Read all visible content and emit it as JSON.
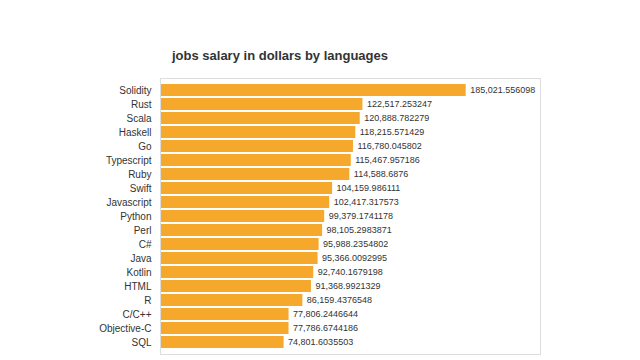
{
  "chart_data": {
    "type": "bar",
    "orientation": "horizontal",
    "title": "jobs salary in dollars by languages",
    "categories": [
      "Solidity",
      "Rust",
      "Scala",
      "Haskell",
      "Go",
      "Typescript",
      "Ruby",
      "Swift",
      "Javascript",
      "Python",
      "Perl",
      "C#",
      "Java",
      "Kotlin",
      "HTML",
      "R",
      "C/C++",
      "Objective-C",
      "SQL"
    ],
    "values": [
      185021.556098,
      122517.253247,
      120888.782279,
      118215.571429,
      116780.045802,
      115467.957186,
      114588.6876,
      104159.986111,
      102417.317573,
      99379.1741178,
      98105.2983871,
      95988.2354802,
      95366.0092995,
      92740.1679198,
      91368.9921329,
      86159.4376548,
      77806.2446644,
      77786.6744186,
      74801.6035503
    ],
    "value_labels": [
      "185,021.556098",
      "122,517.253247",
      "120,888.782279",
      "118,215.571429",
      "116,780.045802",
      "115,467.957186",
      "114,588.6876",
      "104,159.986111",
      "102,417.317573",
      "99,379.1741178",
      "98,105.2983871",
      "95,988.2354802",
      "95,366.0092995",
      "92,740.1679198",
      "91,368.9921329",
      "86,159.4376548",
      "77,806.2446644",
      "77,786.6744186",
      "74,801.6035503"
    ],
    "color": "#f5a82b",
    "xlim": [
      0,
      230000
    ],
    "xticks": [],
    "data_labels": true,
    "tick_labels": "y",
    "grid": false
  }
}
